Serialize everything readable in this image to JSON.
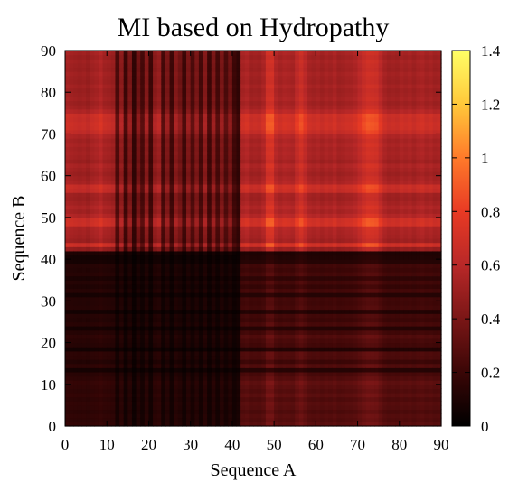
{
  "chart_data": {
    "type": "heatmap",
    "title": "MI based on Hydropathy",
    "xlabel": "Sequence A",
    "ylabel": "Sequence B",
    "xlim": [
      0,
      90
    ],
    "ylim": [
      0,
      90
    ],
    "xticks": [
      "0",
      "10",
      "20",
      "30",
      "40",
      "50",
      "60",
      "70",
      "80",
      "90"
    ],
    "yticks": [
      "0",
      "10",
      "20",
      "30",
      "40",
      "50",
      "60",
      "70",
      "80",
      "90"
    ],
    "colorbar": {
      "range": [
        0,
        1.4
      ],
      "ticks": [
        "0",
        "0.2",
        "0.4",
        "0.6",
        "0.8",
        "1",
        "1.2",
        "1.4"
      ],
      "colormap": [
        "#000000",
        "#3a0606",
        "#7a1616",
        "#b82828",
        "#e83a24",
        "#ff7a2a",
        "#ffc83a",
        "#ffff66"
      ]
    },
    "n_residues": 90,
    "block_boundary": 41,
    "residue_profile_A": [
      0.55,
      0.52,
      0.5,
      0.48,
      0.5,
      0.46,
      0.52,
      0.55,
      0.62,
      0.52,
      0.5,
      0.46,
      0.12,
      0.4,
      0.08,
      0.3,
      0.05,
      0.25,
      0.1,
      0.35,
      0.08,
      0.38,
      0.45,
      0.1,
      0.3,
      0.08,
      0.35,
      0.25,
      0.08,
      0.3,
      0.12,
      0.3,
      0.1,
      0.35,
      0.08,
      0.3,
      0.1,
      0.3,
      0.12,
      0.25,
      0.08,
      0.05,
      0.55,
      0.6,
      0.5,
      0.52,
      0.5,
      0.58,
      0.9,
      0.92,
      0.62,
      0.55,
      0.6,
      0.58,
      0.55,
      0.72,
      0.85,
      0.7,
      0.55,
      0.52,
      0.55,
      0.5,
      0.55,
      0.52,
      0.58,
      0.5,
      0.52,
      0.55,
      0.55,
      0.6,
      0.7,
      0.82,
      0.9,
      0.88,
      0.85,
      0.7,
      0.55,
      0.5,
      0.52,
      0.5,
      0.55,
      0.52,
      0.55,
      0.5,
      0.55,
      0.58,
      0.52,
      0.55,
      0.5,
      0.52
    ],
    "residue_profile_B": [
      0.55,
      0.45,
      0.5,
      0.4,
      0.48,
      0.52,
      0.42,
      0.55,
      0.45,
      0.52,
      0.6,
      0.45,
      0.35,
      0.1,
      0.45,
      0.25,
      0.4,
      0.42,
      0.08,
      0.3,
      0.35,
      0.45,
      0.3,
      0.1,
      0.35,
      0.25,
      0.3,
      0.08,
      0.32,
      0.28,
      0.3,
      0.1,
      0.32,
      0.2,
      0.3,
      0.15,
      0.32,
      0.25,
      0.3,
      0.1,
      0.08,
      0.02,
      0.45,
      0.9,
      0.5,
      0.55,
      0.58,
      0.6,
      0.92,
      0.9,
      0.65,
      0.55,
      0.62,
      0.55,
      0.5,
      0.52,
      0.8,
      0.85,
      0.6,
      0.55,
      0.5,
      0.55,
      0.6,
      0.5,
      0.55,
      0.58,
      0.55,
      0.6,
      0.55,
      0.62,
      0.8,
      0.88,
      0.9,
      0.85,
      0.88,
      0.65,
      0.55,
      0.5,
      0.55,
      0.52,
      0.5,
      0.55,
      0.5,
      0.52,
      0.55,
      0.5,
      0.52,
      0.55,
      0.5,
      0.55
    ],
    "value_scale": 1.0,
    "low_block_factor": 0.55
  }
}
